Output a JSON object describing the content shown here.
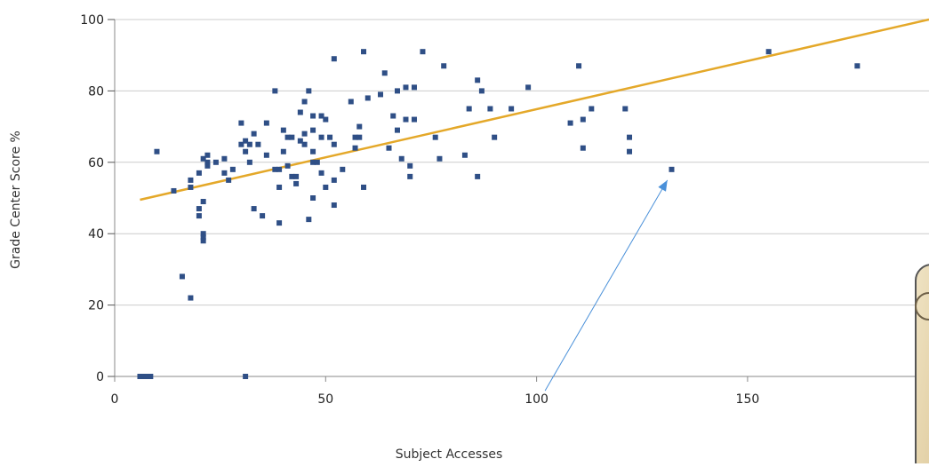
{
  "chart_data": {
    "type": "scatter",
    "xlabel": "Subject Accesses",
    "ylabel": "Grade Center Score %",
    "xlim": [
      0,
      193
    ],
    "ylim": [
      0,
      100
    ],
    "x_ticks": [
      "0",
      "50",
      "100",
      "150"
    ],
    "y_ticks": [
      "0",
      "20",
      "40",
      "60",
      "80",
      "100"
    ],
    "grid": "horizontal",
    "colors": {
      "points": "#2f4f86",
      "trendline": "#e4a829",
      "arrow": "#4a90d9",
      "grid": "#cccccc"
    },
    "series": [
      {
        "values": [
          [
            6,
            0
          ],
          [
            7,
            0
          ],
          [
            7.5,
            0
          ],
          [
            8,
            0
          ],
          [
            8.5,
            0
          ],
          [
            31,
            0
          ],
          [
            10,
            63
          ],
          [
            14,
            52
          ],
          [
            16,
            28
          ],
          [
            18,
            22
          ],
          [
            18,
            55
          ],
          [
            18,
            53
          ],
          [
            20,
            45
          ],
          [
            20,
            47
          ],
          [
            20,
            57
          ],
          [
            21,
            61
          ],
          [
            21,
            49
          ],
          [
            21,
            40
          ],
          [
            21,
            39
          ],
          [
            21,
            38
          ],
          [
            22,
            60
          ],
          [
            22,
            59
          ],
          [
            22,
            62
          ],
          [
            24,
            60
          ],
          [
            26,
            61
          ],
          [
            26,
            57
          ],
          [
            27,
            55
          ],
          [
            28,
            58
          ],
          [
            30,
            71
          ],
          [
            30,
            65
          ],
          [
            31,
            66
          ],
          [
            31,
            63
          ],
          [
            32,
            65
          ],
          [
            32,
            60
          ],
          [
            33,
            68
          ],
          [
            33,
            47
          ],
          [
            34,
            65
          ],
          [
            35,
            45
          ],
          [
            36,
            71
          ],
          [
            36,
            62
          ],
          [
            38,
            58
          ],
          [
            38,
            80
          ],
          [
            39,
            53
          ],
          [
            39,
            58
          ],
          [
            39,
            43
          ],
          [
            40,
            69
          ],
          [
            40,
            63
          ],
          [
            41,
            67
          ],
          [
            41,
            59
          ],
          [
            42,
            56
          ],
          [
            42,
            67
          ],
          [
            43,
            56
          ],
          [
            43,
            54
          ],
          [
            44,
            74
          ],
          [
            44,
            66
          ],
          [
            45,
            65
          ],
          [
            45,
            68
          ],
          [
            45,
            77
          ],
          [
            46,
            80
          ],
          [
            46,
            44
          ],
          [
            47,
            73
          ],
          [
            47,
            69
          ],
          [
            47,
            63
          ],
          [
            47,
            60
          ],
          [
            47,
            50
          ],
          [
            48,
            60
          ],
          [
            49,
            73
          ],
          [
            49,
            67
          ],
          [
            49,
            57
          ],
          [
            50,
            72
          ],
          [
            50,
            53
          ],
          [
            51,
            67
          ],
          [
            52,
            89
          ],
          [
            52,
            65
          ],
          [
            52,
            55
          ],
          [
            52,
            48
          ],
          [
            54,
            58
          ],
          [
            56,
            77
          ],
          [
            57,
            64
          ],
          [
            57,
            67
          ],
          [
            58,
            70
          ],
          [
            58,
            67
          ],
          [
            59,
            91
          ],
          [
            59,
            53
          ],
          [
            60,
            78
          ],
          [
            63,
            79
          ],
          [
            64,
            85
          ],
          [
            65,
            64
          ],
          [
            66,
            73
          ],
          [
            67,
            69
          ],
          [
            67,
            80
          ],
          [
            68,
            61
          ],
          [
            69,
            72
          ],
          [
            69,
            81
          ],
          [
            70,
            59
          ],
          [
            70,
            56
          ],
          [
            71,
            81
          ],
          [
            71,
            72
          ],
          [
            73,
            91
          ],
          [
            76,
            67
          ],
          [
            77,
            61
          ],
          [
            78,
            87
          ],
          [
            83,
            62
          ],
          [
            84,
            75
          ],
          [
            86,
            83
          ],
          [
            86,
            56
          ],
          [
            87,
            80
          ],
          [
            89,
            75
          ],
          [
            90,
            67
          ],
          [
            94,
            75
          ],
          [
            98,
            81
          ],
          [
            108,
            71
          ],
          [
            110,
            87
          ],
          [
            111,
            64
          ],
          [
            111,
            72
          ],
          [
            113,
            75
          ],
          [
            121,
            75
          ],
          [
            122,
            67
          ],
          [
            122,
            63
          ],
          [
            132,
            58
          ],
          [
            155,
            91
          ],
          [
            176,
            87
          ]
        ]
      }
    ],
    "trendline": {
      "x": [
        6,
        193
      ],
      "y": [
        49.5,
        100
      ]
    },
    "annotation": {
      "type": "arrow",
      "from": [
        102,
        -4
      ],
      "to": [
        131,
        55
      ]
    }
  }
}
